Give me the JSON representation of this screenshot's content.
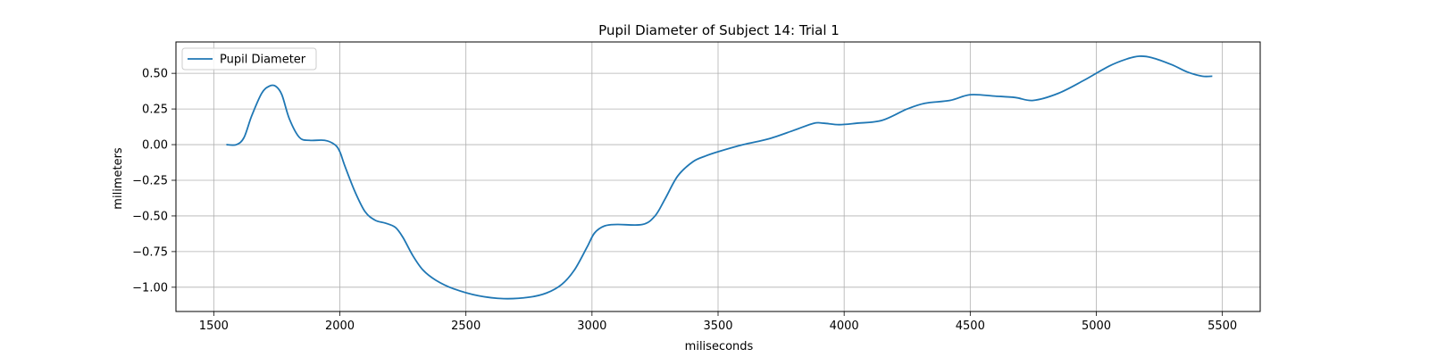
{
  "chart_data": {
    "type": "line",
    "title": "Pupil Diameter of Subject 14: Trial 1",
    "xlabel": "miliseconds",
    "ylabel": "milimeters",
    "xlim": [
      1350,
      5650
    ],
    "ylim": [
      -1.17,
      0.72
    ],
    "xticks": [
      1500,
      2000,
      2500,
      3000,
      3500,
      4000,
      4500,
      5000,
      5500
    ],
    "yticks": [
      -1.0,
      -0.75,
      -0.5,
      -0.25,
      0.0,
      0.25,
      0.5
    ],
    "ytick_labels": [
      "−1.00",
      "−0.75",
      "−0.50",
      "−0.25",
      "0.00",
      "0.25",
      "0.50"
    ],
    "grid": true,
    "legend": {
      "placement": "top-left",
      "entries": [
        "Pupil Diameter"
      ]
    },
    "series": [
      {
        "name": "Pupil Diameter",
        "color": "#1f77b4",
        "x": [
          1550,
          1590,
          1620,
          1650,
          1690,
          1720,
          1745,
          1770,
          1800,
          1840,
          1880,
          1940,
          1980,
          2000,
          2020,
          2060,
          2100,
          2140,
          2180,
          2220,
          2250,
          2290,
          2330,
          2380,
          2450,
          2550,
          2650,
          2750,
          2820,
          2880,
          2930,
          2980,
          3010,
          3050,
          3100,
          3200,
          3250,
          3290,
          3340,
          3400,
          3450,
          3500,
          3600,
          3700,
          3800,
          3880,
          3920,
          3980,
          4050,
          4150,
          4250,
          4320,
          4420,
          4500,
          4600,
          4680,
          4750,
          4850,
          4950,
          5050,
          5120,
          5170,
          5220,
          5300,
          5360,
          5420,
          5460
        ],
        "y": [
          0.0,
          0.0,
          0.05,
          0.2,
          0.36,
          0.41,
          0.41,
          0.35,
          0.18,
          0.05,
          0.03,
          0.03,
          0.0,
          -0.05,
          -0.15,
          -0.33,
          -0.47,
          -0.53,
          -0.55,
          -0.58,
          -0.65,
          -0.78,
          -0.88,
          -0.95,
          -1.01,
          -1.06,
          -1.08,
          -1.07,
          -1.04,
          -0.98,
          -0.88,
          -0.72,
          -0.62,
          -0.57,
          -0.56,
          -0.56,
          -0.5,
          -0.38,
          -0.22,
          -0.12,
          -0.08,
          -0.05,
          0.0,
          0.04,
          0.1,
          0.15,
          0.15,
          0.14,
          0.15,
          0.17,
          0.25,
          0.29,
          0.31,
          0.35,
          0.34,
          0.33,
          0.31,
          0.36,
          0.45,
          0.55,
          0.6,
          0.62,
          0.61,
          0.56,
          0.51,
          0.48,
          0.48
        ]
      }
    ]
  }
}
